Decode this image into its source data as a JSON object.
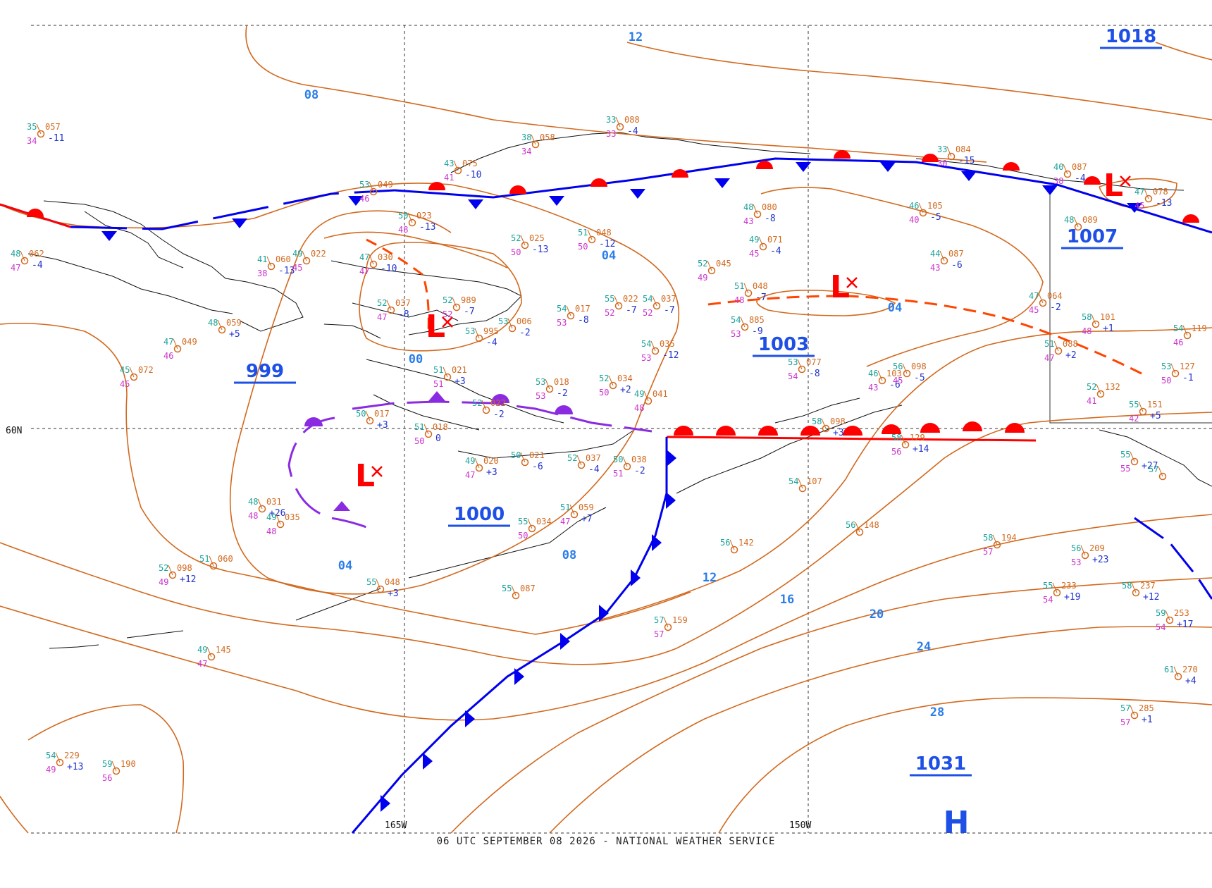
{
  "map": {
    "footer": "06 UTC SEPTEMBER 08 2026 - NATIONAL WEATHER SERVICE",
    "lat_label": "60N",
    "lon_labels": [
      "165W",
      "150W"
    ],
    "colors": {
      "isobar": "#d2691e",
      "isobar_label": "#2b7de9",
      "warm_front": "#ff0000",
      "cold_front": "#0000ee",
      "occluded_front": "#8a2be2",
      "low": "#ff0000",
      "high": "#1e50e6",
      "station_temp": "#d2691e",
      "station_dew": "#cc33cc",
      "station_tend": "#2233cc"
    },
    "centers": [
      {
        "type": "L",
        "pressure": ""
      },
      {
        "type": "L",
        "pressure": ""
      },
      {
        "type": "L",
        "pressure": ""
      },
      {
        "type": "L",
        "pressure": ""
      },
      {
        "type": "H",
        "pressure": ""
      }
    ],
    "pressure_labels": [
      "1018",
      "1007",
      "1003",
      "999",
      "1000",
      "1031"
    ],
    "isobar_labels": [
      "12",
      "08",
      "04",
      "00",
      "04",
      "08",
      "04",
      "12",
      "16",
      "20",
      "24",
      "28"
    ],
    "stations": [
      {
        "t": "35",
        "p": "057",
        "d": "34",
        "tend": "-11"
      },
      {
        "t": "53",
        "p": "049",
        "d": "46",
        "tend": ""
      },
      {
        "t": "43",
        "p": "075",
        "d": "41",
        "tend": "-10"
      },
      {
        "t": "38",
        "p": "058",
        "d": "34",
        "tend": ""
      },
      {
        "t": "33",
        "p": "088",
        "d": "33",
        "tend": "-4"
      },
      {
        "t": "33",
        "p": "084",
        "d": "30",
        "tend": "-15"
      },
      {
        "t": "40",
        "p": "087",
        "d": "38",
        "tend": "-4"
      },
      {
        "t": "47",
        "p": "078",
        "d": "45",
        "tend": "-13"
      },
      {
        "t": "48",
        "p": "062",
        "d": "47",
        "tend": "-4"
      },
      {
        "t": "41",
        "p": "060",
        "d": "38",
        "tend": "-13"
      },
      {
        "t": "49",
        "p": "022",
        "d": "45",
        "tend": ""
      },
      {
        "t": "50",
        "p": "023",
        "d": "48",
        "tend": "-13"
      },
      {
        "t": "52",
        "p": "025",
        "d": "50",
        "tend": "-13"
      },
      {
        "t": "51",
        "p": "048",
        "d": "50",
        "tend": "-12"
      },
      {
        "t": "48",
        "p": "080",
        "d": "43",
        "tend": "-8"
      },
      {
        "t": "46",
        "p": "105",
        "d": "40",
        "tend": "-5"
      },
      {
        "t": "48",
        "p": "089",
        "d": "",
        "tend": ""
      },
      {
        "t": "49",
        "p": "071",
        "d": "45",
        "tend": "-4"
      },
      {
        "t": "44",
        "p": "087",
        "d": "43",
        "tend": "-6"
      },
      {
        "t": "47",
        "p": "030",
        "d": "47",
        "tend": "-10"
      },
      {
        "t": "52",
        "p": "045",
        "d": "49",
        "tend": ""
      },
      {
        "t": "51",
        "p": "048",
        "d": "48",
        "tend": "-7"
      },
      {
        "t": "52",
        "p": "037",
        "d": "47",
        "tend": "-8"
      },
      {
        "t": "52",
        "p": "989",
        "d": "52",
        "tend": "-7"
      },
      {
        "t": "54",
        "p": "017",
        "d": "53",
        "tend": "-8"
      },
      {
        "t": "55",
        "p": "022",
        "d": "52",
        "tend": "-7"
      },
      {
        "t": "54",
        "p": "037",
        "d": "52",
        "tend": "-7"
      },
      {
        "t": "54",
        "p": "885",
        "d": "53",
        "tend": "-9"
      },
      {
        "t": "47",
        "p": "064",
        "d": "45",
        "tend": "-2"
      },
      {
        "t": "58",
        "p": "101",
        "d": "48",
        "tend": "+1"
      },
      {
        "t": "54",
        "p": "119",
        "d": "46",
        "tend": ""
      },
      {
        "t": "53",
        "p": "006",
        "d": "",
        "tend": "-2"
      },
      {
        "t": "53",
        "p": "995",
        "d": "",
        "tend": "-4"
      },
      {
        "t": "47",
        "p": "049",
        "d": "46",
        "tend": ""
      },
      {
        "t": "48",
        "p": "059",
        "d": "",
        "tend": "+5"
      },
      {
        "t": "45",
        "p": "072",
        "d": "45",
        "tend": ""
      },
      {
        "t": "51",
        "p": "021",
        "d": "51",
        "tend": "+3"
      },
      {
        "t": "54",
        "p": "035",
        "d": "53",
        "tend": "-12"
      },
      {
        "t": "53",
        "p": "077",
        "d": "54",
        "tend": "-8"
      },
      {
        "t": "46",
        "p": "103",
        "d": "43",
        "tend": "-6"
      },
      {
        "t": "56",
        "p": "098",
        "d": "45",
        "tend": "-5"
      },
      {
        "t": "51",
        "p": "088",
        "d": "47",
        "tend": "+2"
      },
      {
        "t": "53",
        "p": "127",
        "d": "50",
        "tend": "-1"
      },
      {
        "t": "53",
        "p": "018",
        "d": "53",
        "tend": "-2"
      },
      {
        "t": "52",
        "p": "034",
        "d": "50",
        "tend": "+2"
      },
      {
        "t": "49",
        "p": "041",
        "d": "48",
        "tend": ""
      },
      {
        "t": "52",
        "p": "132",
        "d": "41",
        "tend": ""
      },
      {
        "t": "55",
        "p": "151",
        "d": "42",
        "tend": "+5"
      },
      {
        "t": "50",
        "p": "017",
        "d": "",
        "tend": "+3"
      },
      {
        "t": "51",
        "p": "018",
        "d": "50",
        "tend": "0"
      },
      {
        "t": "52",
        "p": "022",
        "d": "",
        "tend": "-2"
      },
      {
        "t": "58",
        "p": "129",
        "d": "56",
        "tend": "+14"
      },
      {
        "t": "58",
        "p": "098",
        "d": "",
        "tend": "+3"
      },
      {
        "t": "49",
        "p": "020",
        "d": "47",
        "tend": "+3"
      },
      {
        "t": "50",
        "p": "021",
        "d": "",
        "tend": "-6"
      },
      {
        "t": "52",
        "p": "037",
        "d": "",
        "tend": "-4"
      },
      {
        "t": "50",
        "p": "038",
        "d": "51",
        "tend": "-2"
      },
      {
        "t": "48",
        "p": "031",
        "d": "48",
        "tend": "+26"
      },
      {
        "t": "49",
        "p": "035",
        "d": "48",
        "tend": ""
      },
      {
        "t": "54",
        "p": "107",
        "d": "",
        "tend": ""
      },
      {
        "t": "55",
        "p": "",
        "d": "55",
        "tend": "+27"
      },
      {
        "t": "57",
        "p": "",
        "d": "",
        "tend": ""
      },
      {
        "t": "51",
        "p": "059",
        "d": "47",
        "tend": "+7"
      },
      {
        "t": "55",
        "p": "034",
        "d": "50",
        "tend": ""
      },
      {
        "t": "52",
        "p": "098",
        "d": "49",
        "tend": "+12"
      },
      {
        "t": "51",
        "p": "060",
        "d": "",
        "tend": ""
      },
      {
        "t": "55",
        "p": "048",
        "d": "",
        "tend": "+3"
      },
      {
        "t": "55",
        "p": "087",
        "d": "",
        "tend": ""
      },
      {
        "t": "56",
        "p": "148",
        "d": "",
        "tend": ""
      },
      {
        "t": "58",
        "p": "194",
        "d": "57",
        "tend": ""
      },
      {
        "t": "56",
        "p": "209",
        "d": "53",
        "tend": "+23"
      },
      {
        "t": "55",
        "p": "233",
        "d": "54",
        "tend": "+19"
      },
      {
        "t": "58",
        "p": "237",
        "d": "",
        "tend": "+12"
      },
      {
        "t": "59",
        "p": "253",
        "d": "54",
        "tend": "+17"
      },
      {
        "t": "56",
        "p": "142",
        "d": "",
        "tend": ""
      },
      {
        "t": "57",
        "p": "159",
        "d": "57",
        "tend": ""
      },
      {
        "t": "49",
        "p": "145",
        "d": "47",
        "tend": ""
      },
      {
        "t": "61",
        "p": "270",
        "d": "",
        "tend": "+4"
      },
      {
        "t": "57",
        "p": "285",
        "d": "57",
        "tend": "+1"
      },
      {
        "t": "54",
        "p": "229",
        "d": "49",
        "tend": "+13"
      },
      {
        "t": "59",
        "p": "190",
        "d": "56",
        "tend": ""
      }
    ]
  }
}
